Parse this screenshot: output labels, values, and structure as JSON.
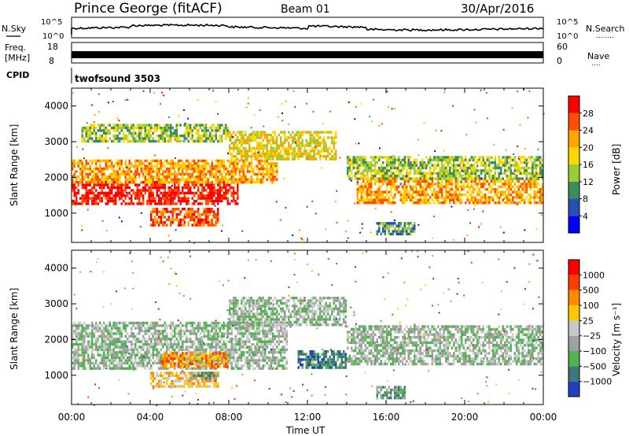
{
  "header": {
    "station": "Prince George (fitACF)",
    "beam": "Beam 01",
    "date": "30/Apr/2016"
  },
  "noise_panel": {
    "left_label": "N.Sky",
    "right_label": "N.Search",
    "right_dots": "........",
    "left_ticks": [
      "10^5",
      "10^0"
    ],
    "right_ticks": [
      "10^5",
      "10^0"
    ]
  },
  "freq_panel": {
    "left_label_1": "Freq.",
    "left_label_2": "[MHz]",
    "right_label": "Nave",
    "right_dots": "....",
    "left_ticks": [
      "18",
      "8"
    ],
    "right_ticks": [
      "60",
      "0"
    ]
  },
  "cpid_panel": {
    "label": "CPID",
    "value": "twofsound 3503"
  },
  "power_panel": {
    "ylabel": "Slant Range [km]",
    "yticks": [
      "4000",
      "3000",
      "2000",
      "1000"
    ],
    "colorbar_label": "Power [dB]",
    "colorbar_ticks": [
      "28",
      "24",
      "20",
      "16",
      "12",
      "8",
      "4"
    ],
    "colors": [
      "#0000ff",
      "#2850b4",
      "#3c8c5a",
      "#9acd32",
      "#ffd700",
      "#ffa500",
      "#ff5000",
      "#ff0000"
    ]
  },
  "velocity_panel": {
    "ylabel": "Slant Range [km]",
    "yticks": [
      "4000",
      "3000",
      "2000",
      "1000"
    ],
    "colorbar_label": "Velocity [m s⁻¹]",
    "colorbar_ticks": [
      "1000",
      "500",
      "100",
      "25",
      "−25",
      "−100",
      "−500",
      "−1000"
    ],
    "colors": [
      "#2040c0",
      "#3c7878",
      "#50b450",
      "#a0a0a0",
      "#c8c8c8",
      "#ffc800",
      "#ff8c00",
      "#ff3c00",
      "#ff0000"
    ]
  },
  "xaxis": {
    "title": "Time UT",
    "ticks": [
      "00:00",
      "04:00",
      "08:00",
      "12:00",
      "16:00",
      "20:00",
      "00:00"
    ]
  },
  "chart_data": {
    "type": "heatmap",
    "x_range_hours": [
      0,
      24
    ],
    "y_range_km": [
      180,
      4500
    ],
    "power_bands": [
      {
        "t0": 0.0,
        "t1": 8.5,
        "r0": 1250,
        "r1": 1900,
        "level": 7
      },
      {
        "t0": 0.0,
        "t1": 10.5,
        "r0": 1900,
        "r1": 2500,
        "level": 5
      },
      {
        "t0": 0.5,
        "t1": 8.0,
        "r0": 3000,
        "r1": 3500,
        "level": 3
      },
      {
        "t0": 4.0,
        "t1": 7.5,
        "r0": 700,
        "r1": 1150,
        "level": 6
      },
      {
        "t0": 8.0,
        "t1": 13.5,
        "r0": 2500,
        "r1": 3300,
        "level": 4
      },
      {
        "t0": 14.5,
        "t1": 24.0,
        "r0": 1300,
        "r1": 2000,
        "level": 5
      },
      {
        "t0": 14.0,
        "t1": 24.0,
        "r0": 2000,
        "r1": 2600,
        "level": 3
      },
      {
        "t0": 15.5,
        "t1": 17.5,
        "r0": 450,
        "r1": 750,
        "level": 2
      }
    ],
    "velocity_bands": [
      {
        "t0": 0.0,
        "t1": 11.0,
        "r0": 1200,
        "r1": 2500,
        "level": 3
      },
      {
        "t0": 8.0,
        "t1": 14.0,
        "r0": 2400,
        "r1": 3200,
        "level": 3
      },
      {
        "t0": 14.0,
        "t1": 24.0,
        "r0": 1300,
        "r1": 2400,
        "level": 3
      },
      {
        "t0": 4.5,
        "t1": 8.0,
        "r0": 1250,
        "r1": 1650,
        "level": 6
      },
      {
        "t0": 4.0,
        "t1": 7.5,
        "r0": 700,
        "r1": 1100,
        "level": 5
      },
      {
        "t0": 6.0,
        "t1": 7.5,
        "r0": 900,
        "r1": 1100,
        "level": 2
      },
      {
        "t0": 11.5,
        "t1": 14.0,
        "r0": 1200,
        "r1": 1700,
        "level": 1
      },
      {
        "t0": 15.5,
        "t1": 17.0,
        "r0": 400,
        "r1": 700,
        "level": 2
      }
    ]
  }
}
